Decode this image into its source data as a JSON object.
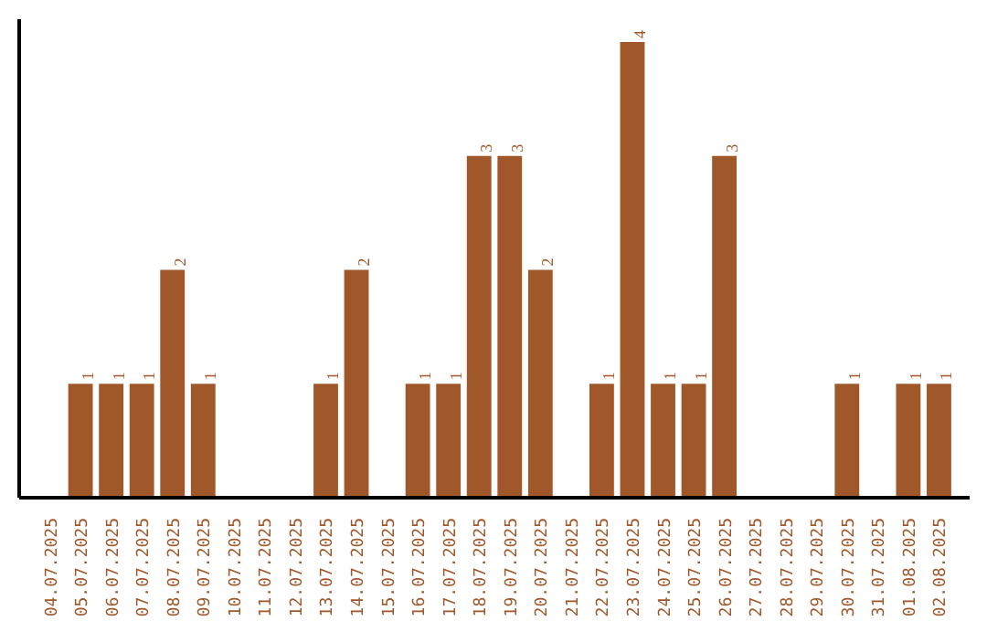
{
  "chart_data": {
    "type": "bar",
    "categories": [
      "04.07.2025",
      "05.07.2025",
      "06.07.2025",
      "07.07.2025",
      "08.07.2025",
      "09.07.2025",
      "10.07.2025",
      "11.07.2025",
      "12.07.2025",
      "13.07.2025",
      "14.07.2025",
      "15.07.2025",
      "16.07.2025",
      "17.07.2025",
      "18.07.2025",
      "19.07.2025",
      "20.07.2025",
      "21.07.2025",
      "22.07.2025",
      "23.07.2025",
      "24.07.2025",
      "25.07.2025",
      "26.07.2025",
      "27.07.2025",
      "28.07.2025",
      "29.07.2025",
      "30.07.2025",
      "31.07.2025",
      "01.08.2025",
      "02.08.2025"
    ],
    "values": [
      0,
      1,
      1,
      1,
      2,
      1,
      0,
      0,
      0,
      1,
      2,
      0,
      1,
      1,
      3,
      3,
      2,
      0,
      1,
      4,
      1,
      1,
      3,
      0,
      0,
      0,
      1,
      0,
      1,
      1
    ],
    "value_labels": [
      null,
      "1",
      "1",
      "1",
      "2",
      "1",
      null,
      null,
      null,
      "1",
      "2",
      null,
      "1",
      "1",
      "3",
      "3",
      "2",
      null,
      "1",
      "4",
      "1",
      "1",
      "3",
      null,
      null,
      null,
      "1",
      null,
      "1",
      "1"
    ],
    "color": "#a0582a",
    "ylim": [
      0,
      4.2
    ],
    "tick_labels": "x",
    "grid": false
  }
}
